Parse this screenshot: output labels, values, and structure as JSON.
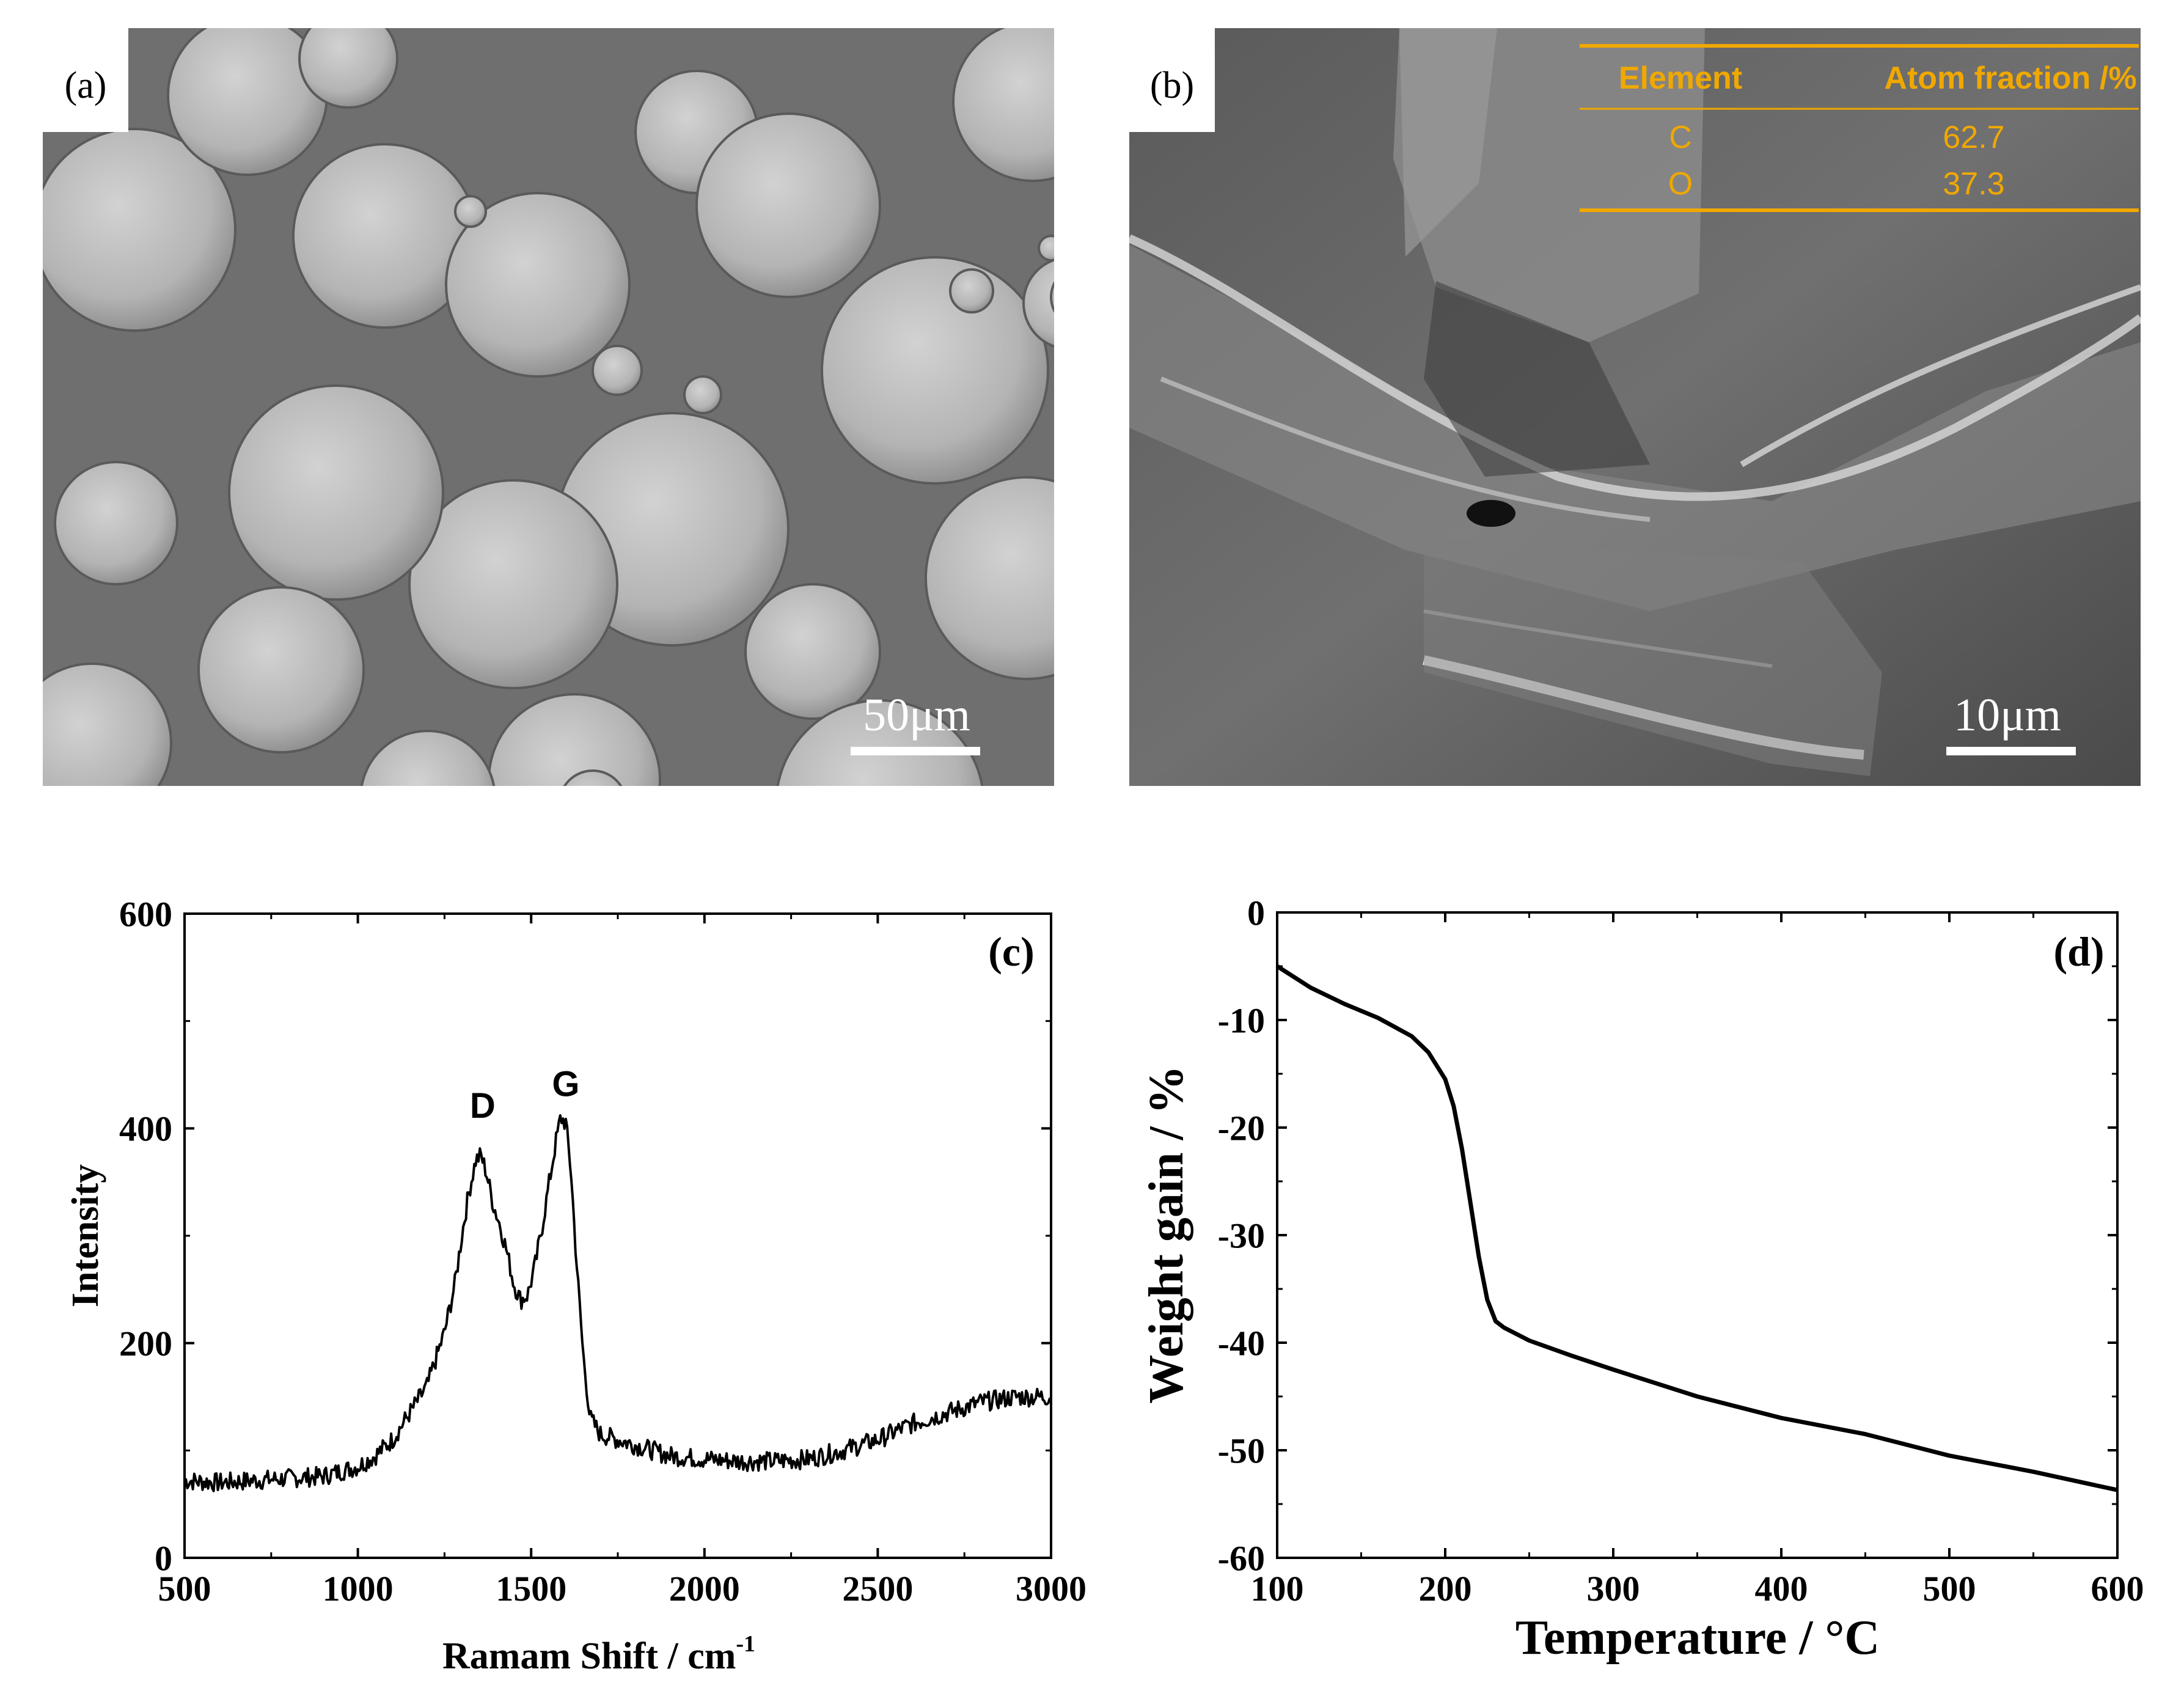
{
  "panels": {
    "a": {
      "label": "(a)",
      "scale_bar": "50μm"
    },
    "b": {
      "label": "(b)",
      "scale_bar": "10μm",
      "table": {
        "headers": [
          "Element",
          "Atom fraction /%"
        ],
        "rows": [
          [
            "C",
            "62.7"
          ],
          [
            "O",
            "37.3"
          ]
        ]
      }
    }
  },
  "chart_data": [
    {
      "panel": "(c)",
      "type": "line",
      "xlabel": "Ramam Shift / cm",
      "xlabel_superscript": "-1",
      "ylabel": "Intensity",
      "xlim": [
        500,
        3000
      ],
      "ylim": [
        0,
        600
      ],
      "xticks": [
        500,
        1000,
        1500,
        2000,
        2500,
        3000
      ],
      "yticks": [
        0,
        200,
        400,
        600
      ],
      "annotations": [
        {
          "text": "D",
          "x": 1360,
          "y": 410
        },
        {
          "text": "G",
          "x": 1600,
          "y": 430
        }
      ],
      "series": [
        {
          "x": [
            500,
            600,
            700,
            800,
            900,
            1000,
            1050,
            1100,
            1150,
            1200,
            1250,
            1280,
            1300,
            1320,
            1340,
            1355,
            1370,
            1390,
            1410,
            1430,
            1450,
            1470,
            1490,
            1510,
            1530,
            1550,
            1570,
            1585,
            1600,
            1615,
            1630,
            1650,
            1670,
            1700,
            1800,
            1900,
            2000,
            2100,
            2200,
            2300,
            2400,
            2500,
            2600,
            2700,
            2800,
            2900,
            3000
          ],
          "y": [
            72,
            70,
            72,
            74,
            76,
            85,
            95,
            110,
            135,
            160,
            210,
            255,
            300,
            340,
            370,
            375,
            360,
            330,
            310,
            285,
            255,
            240,
            245,
            270,
            305,
            345,
            385,
            410,
            405,
            360,
            280,
            190,
            130,
            115,
            105,
            95,
            92,
            90,
            90,
            92,
            100,
            110,
            125,
            135,
            145,
            150,
            150
          ]
        }
      ]
    },
    {
      "panel": "(d)",
      "type": "line",
      "xlabel": "Temperature / °C",
      "ylabel": "Weight gain / %",
      "xlim": [
        100,
        600
      ],
      "ylim": [
        -60,
        0
      ],
      "xticks": [
        100,
        200,
        300,
        400,
        500,
        600
      ],
      "yticks": [
        0,
        -10,
        -20,
        -30,
        -40,
        -50,
        -60
      ],
      "series": [
        {
          "x": [
            100,
            120,
            140,
            160,
            180,
            190,
            200,
            205,
            210,
            215,
            220,
            225,
            230,
            235,
            240,
            250,
            275,
            300,
            350,
            400,
            450,
            500,
            550,
            600
          ],
          "y": [
            -5,
            -7,
            -8.5,
            -9.8,
            -11.5,
            -13,
            -15.5,
            -18,
            -22,
            -27,
            -32,
            -36,
            -38,
            -38.6,
            -39,
            -39.8,
            -41.2,
            -42.5,
            -45,
            -47,
            -48.5,
            -50.5,
            -52,
            -53.7
          ]
        }
      ]
    }
  ]
}
